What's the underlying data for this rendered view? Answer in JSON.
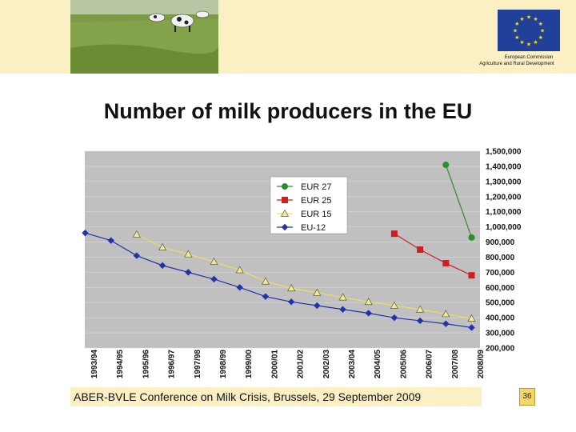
{
  "slide": {
    "title": "Number of milk producers in the EU",
    "footer": "ABER-BVLE Conference on Milk Crisis, Brussels, 29 September 2009",
    "page_number": "36"
  },
  "header": {
    "logo_text_line1": "European Commission",
    "logo_text_line2": "Agriculture and Rural Development"
  },
  "colors": {
    "header_band": "#fbefc4",
    "plot_bg": "#c0c0c0",
    "eur27": "#2e8b2e",
    "eur25": "#cc1f1f",
    "eur15": "#e8e060",
    "eu12": "#2233aa",
    "eu_blue": "#21409a",
    "eu_star": "#ffdd00"
  },
  "chart_data": {
    "type": "line",
    "categories": [
      "1993/94",
      "1994/95",
      "1995/96",
      "1996/97",
      "1997/98",
      "1998/99",
      "1999/00",
      "2000/01",
      "2001/02",
      "2002/03",
      "2003/04",
      "2004/05",
      "2005/06",
      "2006/07",
      "2007/08",
      "2008/09"
    ],
    "y_ticks": [
      "1,500,000",
      "1,400,000",
      "1,300,000",
      "1,200,000",
      "1,100,000",
      "1,000,000",
      "900,000",
      "800,000",
      "700,000",
      "600,000",
      "500,000",
      "400,000",
      "300,000",
      "200,000"
    ],
    "ylim": [
      200000,
      1500000
    ],
    "y_axis_position": "right",
    "legend_placement": "top-center",
    "grid": true,
    "series": [
      {
        "name": "EUR 27",
        "values": [
          null,
          null,
          null,
          null,
          null,
          null,
          null,
          null,
          null,
          null,
          null,
          null,
          null,
          null,
          1410000,
          930000
        ]
      },
      {
        "name": "EUR 25",
        "values": [
          null,
          null,
          null,
          null,
          null,
          null,
          null,
          null,
          null,
          null,
          null,
          null,
          955000,
          850000,
          760000,
          680000
        ]
      },
      {
        "name": "EUR 15",
        "values": [
          null,
          null,
          950000,
          865000,
          820000,
          770000,
          715000,
          640000,
          595000,
          565000,
          535000,
          505000,
          480000,
          455000,
          425000,
          395000
        ]
      },
      {
        "name": "EU-12",
        "values": [
          960000,
          910000,
          810000,
          745000,
          700000,
          655000,
          600000,
          540000,
          505000,
          480000,
          455000,
          430000,
          400000,
          380000,
          360000,
          335000
        ]
      }
    ]
  }
}
